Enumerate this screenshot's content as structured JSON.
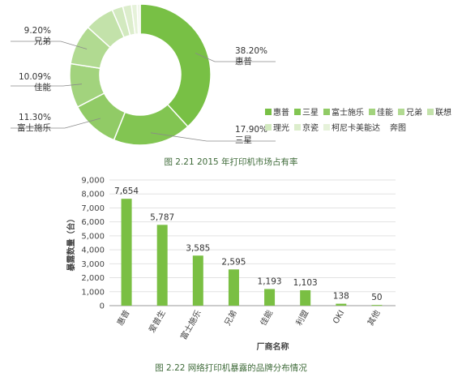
{
  "chart_data": [
    {
      "type": "pie",
      "variant": "donut",
      "title": "图 2.21 2015 年打印机市场占有率",
      "slices": [
        {
          "name": "惠普",
          "value": 38.2,
          "label": "38.20%",
          "color": "#78c045"
        },
        {
          "name": "三星",
          "value": 17.9,
          "label": "17.90%",
          "color": "#82c552"
        },
        {
          "name": "富士施乐",
          "value": 11.3,
          "label": "11.30%",
          "color": "#91cb66"
        },
        {
          "name": "佳能",
          "value": 10.09,
          "label": "10.09%",
          "color": "#a2d37d"
        },
        {
          "name": "兄弟",
          "value": 9.2,
          "label": "9.20%",
          "color": "#b1da91"
        },
        {
          "name": "联想",
          "value": 6.8,
          "label": "",
          "color": "#c3e2aa"
        },
        {
          "name": "理光",
          "value": 2.5,
          "label": "",
          "color": "#d2e9bf"
        },
        {
          "name": "京瓷",
          "value": 2.0,
          "label": "",
          "color": "#dcedcc"
        },
        {
          "name": "柯尼卡美能达",
          "value": 1.3,
          "label": "",
          "color": "#e6f2da"
        },
        {
          "name": "奔图",
          "value": 0.71,
          "label": "",
          "color": "#f0f7e9"
        }
      ],
      "legend": [
        "惠普",
        "三星",
        "富士施乐",
        "佳能",
        "兄弟",
        "联想",
        "理光",
        "京瓷",
        "柯尼卡美能达",
        "奔图"
      ],
      "legend_position": "right"
    },
    {
      "type": "bar",
      "title": "图 2.22 网络打印机暴露的品牌分布情况",
      "categories": [
        "惠普",
        "爱普生",
        "富士施乐",
        "兄弟",
        "佳能",
        "利盟",
        "OKI",
        "其他"
      ],
      "values": [
        7654,
        5787,
        3585,
        2595,
        1193,
        1103,
        138,
        50
      ],
      "value_labels": [
        "7,654",
        "5,787",
        "3,585",
        "2,595",
        "1,193",
        "1,103",
        "138",
        "50"
      ],
      "yticks": [
        "0",
        "1,000",
        "2,000",
        "3,000",
        "4,000",
        "5,000",
        "6,000",
        "7,000",
        "8,000",
        "9,000"
      ],
      "ylim": [
        0,
        9000
      ],
      "xlabel": "厂商名称",
      "ylabel": "暴露数量（台）",
      "grid": true,
      "bar_color": "#7abf43"
    }
  ]
}
